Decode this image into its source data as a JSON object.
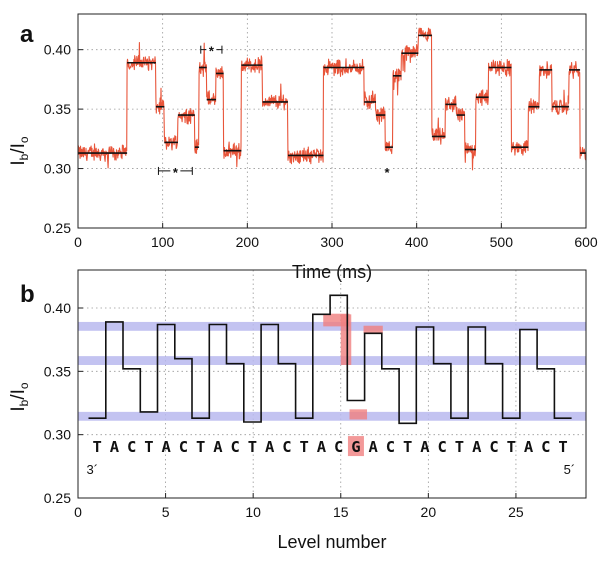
{
  "chart_data": [
    {
      "panel": "a",
      "type": "line",
      "xlabel": "Time (ms)",
      "ylabel": "Ib/Io",
      "xlim": [
        0,
        600
      ],
      "ylim": [
        0.25,
        0.43
      ],
      "xticks": [
        0,
        100,
        200,
        300,
        400,
        500,
        600
      ],
      "yticks": [
        0.25,
        0.3,
        0.35,
        0.4
      ],
      "ytick_labels": [
        "0.25",
        "0.30",
        "0.35",
        "0.40"
      ],
      "grid": true,
      "trace_color": "#e8553a",
      "level_color": "#111111",
      "levels": [
        {
          "start": 0,
          "end": 58,
          "value": 0.313
        },
        {
          "start": 58,
          "end": 92,
          "value": 0.389
        },
        {
          "start": 92,
          "end": 102,
          "value": 0.352
        },
        {
          "start": 102,
          "end": 118,
          "value": 0.322
        },
        {
          "start": 118,
          "end": 138,
          "value": 0.345
        },
        {
          "start": 138,
          "end": 143,
          "value": 0.318
        },
        {
          "start": 143,
          "end": 152,
          "value": 0.385
        },
        {
          "start": 152,
          "end": 163,
          "value": 0.358
        },
        {
          "start": 163,
          "end": 172,
          "value": 0.38
        },
        {
          "start": 172,
          "end": 193,
          "value": 0.315
        },
        {
          "start": 193,
          "end": 218,
          "value": 0.387
        },
        {
          "start": 218,
          "end": 248,
          "value": 0.356
        },
        {
          "start": 248,
          "end": 290,
          "value": 0.311
        },
        {
          "start": 290,
          "end": 338,
          "value": 0.385
        },
        {
          "start": 338,
          "end": 352,
          "value": 0.356
        },
        {
          "start": 352,
          "end": 363,
          "value": 0.345
        },
        {
          "start": 363,
          "end": 372,
          "value": 0.318
        },
        {
          "start": 372,
          "end": 382,
          "value": 0.378
        },
        {
          "start": 382,
          "end": 402,
          "value": 0.397
        },
        {
          "start": 402,
          "end": 418,
          "value": 0.412
        },
        {
          "start": 418,
          "end": 434,
          "value": 0.327
        },
        {
          "start": 434,
          "end": 447,
          "value": 0.354
        },
        {
          "start": 447,
          "end": 457,
          "value": 0.345
        },
        {
          "start": 457,
          "end": 470,
          "value": 0.316
        },
        {
          "start": 470,
          "end": 485,
          "value": 0.36
        },
        {
          "start": 485,
          "end": 512,
          "value": 0.385
        },
        {
          "start": 512,
          "end": 532,
          "value": 0.318
        },
        {
          "start": 532,
          "end": 545,
          "value": 0.352
        },
        {
          "start": 545,
          "end": 560,
          "value": 0.383
        },
        {
          "start": 560,
          "end": 580,
          "value": 0.352
        },
        {
          "start": 580,
          "end": 593,
          "value": 0.383
        },
        {
          "start": 593,
          "end": 600,
          "value": 0.313
        }
      ],
      "annotations": [
        {
          "label": "*",
          "x_start": 95,
          "x_end": 135,
          "y": 0.298
        },
        {
          "label": "*",
          "x_start": 145,
          "x_end": 170,
          "y": 0.4
        },
        {
          "label": "*",
          "x_start": 360,
          "x_end": 370,
          "y": 0.298
        }
      ]
    },
    {
      "panel": "b",
      "type": "line",
      "xlabel": "Level number",
      "ylabel": "Ib/Io",
      "xlim": [
        0,
        29
      ],
      "ylim": [
        0.25,
        0.43
      ],
      "xticks": [
        0,
        5,
        10,
        15,
        20,
        25
      ],
      "yticks": [
        0.25,
        0.3,
        0.35,
        0.4
      ],
      "ytick_labels": [
        "0.25",
        "0.30",
        "0.35",
        "0.40"
      ],
      "grid": true,
      "level_values": [
        0.313,
        0.389,
        0.352,
        0.318,
        0.387,
        0.36,
        0.313,
        0.387,
        0.356,
        0.31,
        0.387,
        0.356,
        0.313,
        0.395,
        0.41,
        0.327,
        0.38,
        0.352,
        0.309,
        0.385,
        0.356,
        0.313,
        0.385,
        0.356,
        0.313,
        0.383,
        0.352,
        0.313
      ],
      "bands": [
        {
          "center": 0.3855,
          "half_width": 0.0035,
          "color": "#b9b9ee"
        },
        {
          "center": 0.3585,
          "half_width": 0.0035,
          "color": "#b9b9ee"
        },
        {
          "center": 0.3145,
          "half_width": 0.0035,
          "color": "#b9b9ee"
        }
      ],
      "highlights": [
        {
          "x_start": 14.0,
          "x_end": 15.5,
          "y_low": 0.3855,
          "y_high": 0.3955
        },
        {
          "x_start": 15.0,
          "x_end": 15.6,
          "y_low": 0.355,
          "y_high": 0.395
        },
        {
          "x_start": 15.5,
          "x_end": 16.5,
          "y_low": 0.312,
          "y_high": 0.32
        },
        {
          "x_start": 16.3,
          "x_end": 17.4,
          "y_low": 0.38,
          "y_high": 0.386
        }
      ],
      "highlight_color": "#f08080",
      "sequence": "TACTACTACTACTACGACTACTACTACT",
      "highlight_base_index": 15,
      "sequence_y": 0.291,
      "left_end_label": "3´",
      "right_end_label": "5´"
    }
  ]
}
